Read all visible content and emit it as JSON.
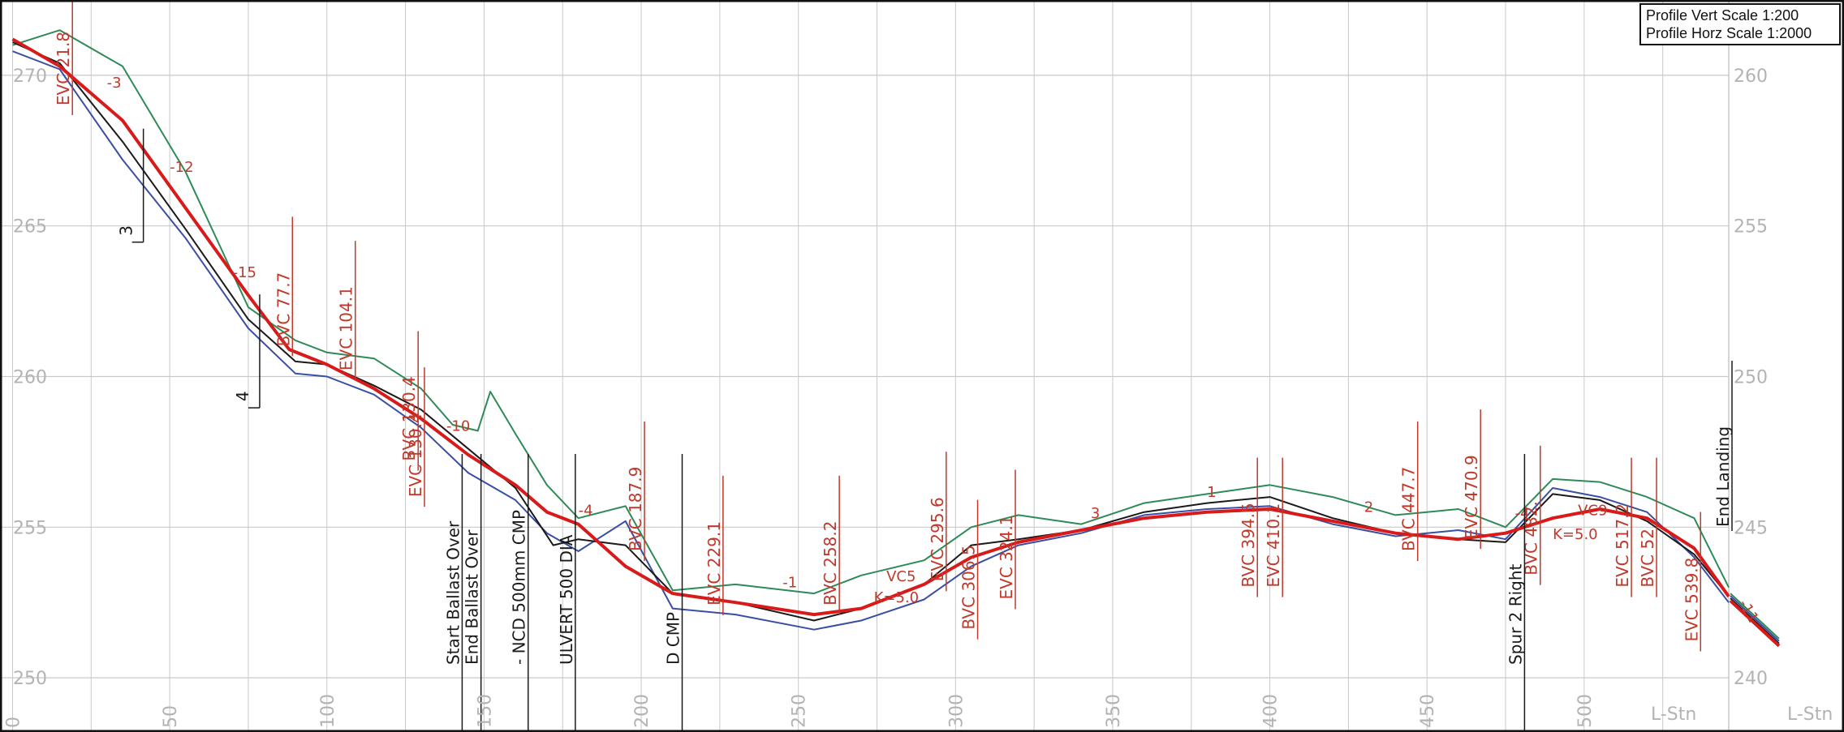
{
  "scale_box": {
    "vert": "Profile Vert Scale 1:200",
    "horz": "Profile Horz Scale 1:2000"
  },
  "colors": {
    "grid": "#c9c9c9",
    "axis_text": "#b3b3b3",
    "design": "#d81a1a",
    "annotation": "#c0392b",
    "green": "#2e8b57",
    "blue": "#3a4fa3",
    "black": "#1a1a1a",
    "border": "#111111"
  },
  "chart_data": {
    "type": "line",
    "title": "",
    "x_axis": {
      "label": "L-Stn",
      "ticks": [
        "0",
        "50",
        "100",
        "150",
        "200",
        "250",
        "300",
        "350",
        "400",
        "450",
        "500"
      ],
      "xlim": [
        -4,
        546
      ]
    },
    "y_axis_left": {
      "ticks": [
        "250",
        "255",
        "260",
        "265",
        "270"
      ],
      "ylim": [
        248.2,
        272.5
      ]
    },
    "y_axis_right": {
      "ticks": [
        "240",
        "245",
        "250",
        "255",
        "260"
      ],
      "ylim": [
        238.2,
        262.5
      ],
      "label": "L-Stn"
    },
    "series": [
      {
        "role": "design-grade",
        "color": "#d81a1a",
        "x": [
          0,
          15,
          35,
          55,
          75,
          88,
          100,
          115,
          130,
          145,
          160,
          170,
          180,
          195,
          210,
          230,
          255,
          270,
          290,
          305,
          320,
          340,
          360,
          380,
          400,
          420,
          440,
          460,
          475,
          490,
          505,
          520,
          535,
          546
        ],
        "y": [
          271.2,
          270.3,
          268.5,
          265.6,
          262.7,
          260.9,
          260.4,
          259.6,
          258.6,
          257.4,
          256.4,
          255.5,
          255.1,
          253.7,
          252.8,
          252.5,
          252.1,
          252.3,
          253.1,
          254.0,
          254.5,
          254.9,
          255.3,
          255.5,
          255.6,
          255.2,
          254.8,
          254.6,
          254.8,
          255.3,
          255.6,
          255.3,
          254.3,
          252.7
        ]
      },
      {
        "role": "ground-green",
        "color": "#2e8b57",
        "x": [
          0,
          15,
          35,
          55,
          75,
          90,
          100,
          115,
          130,
          140,
          148,
          152,
          160,
          170,
          180,
          195,
          210,
          230,
          255,
          270,
          290,
          305,
          320,
          340,
          360,
          380,
          400,
          420,
          440,
          460,
          475,
          490,
          505,
          520,
          535,
          546
        ],
        "y": [
          271.0,
          271.5,
          270.3,
          266.8,
          262.3,
          261.2,
          260.8,
          260.6,
          259.6,
          258.4,
          258.2,
          259.5,
          258.1,
          256.4,
          255.3,
          255.7,
          252.9,
          253.1,
          252.8,
          253.4,
          253.9,
          255.0,
          255.4,
          255.1,
          255.8,
          256.1,
          256.4,
          256.0,
          255.4,
          255.6,
          255.0,
          256.6,
          256.5,
          256.0,
          255.3,
          253.0
        ]
      },
      {
        "role": "ground-blue",
        "color": "#3a4fa3",
        "x": [
          0,
          15,
          35,
          55,
          75,
          90,
          100,
          115,
          130,
          145,
          160,
          170,
          180,
          195,
          210,
          230,
          255,
          270,
          290,
          305,
          320,
          340,
          360,
          380,
          400,
          420,
          440,
          460,
          475,
          490,
          505,
          520,
          535,
          546
        ],
        "y": [
          270.8,
          270.2,
          267.2,
          264.6,
          261.6,
          260.1,
          260.0,
          259.4,
          258.3,
          256.8,
          255.9,
          254.8,
          254.2,
          255.2,
          252.3,
          252.1,
          251.6,
          251.9,
          252.6,
          253.7,
          254.4,
          254.8,
          255.4,
          255.6,
          255.7,
          255.1,
          254.7,
          254.9,
          254.6,
          256.3,
          256.0,
          255.5,
          254.0,
          252.5
        ]
      },
      {
        "role": "ground-black",
        "color": "#1a1a1a",
        "x": [
          0,
          15,
          35,
          55,
          75,
          90,
          100,
          115,
          130,
          145,
          160,
          172,
          180,
          195,
          210,
          230,
          255,
          270,
          290,
          305,
          320,
          340,
          360,
          380,
          400,
          420,
          440,
          460,
          475,
          490,
          505,
          520,
          535,
          546
        ],
        "y": [
          271.1,
          270.4,
          267.8,
          264.9,
          261.9,
          260.5,
          260.4,
          259.7,
          258.9,
          257.6,
          256.3,
          254.4,
          254.6,
          254.4,
          252.8,
          252.5,
          251.9,
          252.3,
          253.1,
          254.4,
          254.6,
          254.9,
          255.5,
          255.8,
          256.0,
          255.3,
          254.8,
          254.6,
          254.5,
          256.1,
          255.9,
          255.2,
          254.1,
          252.7
        ]
      }
    ],
    "right_segment": {
      "x": [
        540,
        546
      ],
      "y": [
        252.8,
        251.3
      ],
      "label": "-11"
    },
    "annotations_red": [
      {
        "text": "BVC 77.7",
        "x": 88,
        "y": 261.0
      },
      {
        "text": "EVC 104.1",
        "x": 108,
        "y": 260.2
      },
      {
        "text": "EVC 21.8",
        "x": 18,
        "y": 269.0
      },
      {
        "text": "BVC 130.4",
        "x": 128,
        "y": 257.2
      },
      {
        "text": "EVC 130.4",
        "x": 130,
        "y": 256.0
      },
      {
        "text": "BVC 187.9",
        "x": 200,
        "y": 254.2
      },
      {
        "text": "EVC 229.1",
        "x": 225,
        "y": 252.4
      },
      {
        "text": "BVC 258.2",
        "x": 262,
        "y": 252.4
      },
      {
        "text": "EVC 295.6",
        "x": 296,
        "y": 253.2
      },
      {
        "text": "BVC 306.5",
        "x": 306,
        "y": 251.6
      },
      {
        "text": "EVC 324.1",
        "x": 318,
        "y": 252.6
      },
      {
        "text": "BVC 394.5",
        "x": 395,
        "y": 253.0
      },
      {
        "text": "EVC 410.1",
        "x": 403,
        "y": 253.0
      },
      {
        "text": "BVC 447.7",
        "x": 446,
        "y": 254.2
      },
      {
        "text": "EVC 470.9",
        "x": 466,
        "y": 254.6
      },
      {
        "text": "BVC 482.",
        "x": 485,
        "y": 253.4
      },
      {
        "text": "EVC 517.2",
        "x": 514,
        "y": 253.0
      },
      {
        "text": "BVC 52",
        "x": 522,
        "y": 253.0
      },
      {
        "text": "EVC 539.8",
        "x": 536,
        "y": 251.2
      }
    ],
    "slope_labels": [
      {
        "text": "-3",
        "x": 30,
        "y": 269.6
      },
      {
        "text": "-12",
        "x": 50,
        "y": 266.8
      },
      {
        "text": "-15",
        "x": 70,
        "y": 263.3
      },
      {
        "text": "-10",
        "x": 138,
        "y": 258.2
      },
      {
        "text": "-4",
        "x": 180,
        "y": 255.4
      },
      {
        "text": "-1",
        "x": 245,
        "y": 253.0
      },
      {
        "text": "VC5",
        "x": 278,
        "y": 253.2
      },
      {
        "text": "K=5.0",
        "x": 274,
        "y": 252.5
      },
      {
        "text": "3",
        "x": 343,
        "y": 255.3
      },
      {
        "text": "1",
        "x": 380,
        "y": 256.0
      },
      {
        "text": "2",
        "x": 430,
        "y": 255.5
      },
      {
        "text": "-4",
        "x": 478,
        "y": 255.3
      },
      {
        "text": "VC9",
        "x": 498,
        "y": 255.4
      },
      {
        "text": "K=5.0",
        "x": 490,
        "y": 254.6
      }
    ],
    "structures": [
      {
        "text": "Start Ballast Over",
        "x": 142
      },
      {
        "text": "End Ballast Over",
        "x": 148
      },
      {
        "text": "- NCD 500mm CMP",
        "x": 163
      },
      {
        "text": "ULVERT 500 DIA",
        "x": 178
      },
      {
        "text": "D CMP",
        "x": 212
      },
      {
        "text": "Spur 2 Right",
        "x": 480
      },
      {
        "text": "End Landing",
        "x": 546
      }
    ],
    "grade_breaks": [
      {
        "text": "3",
        "x": 38,
        "y": 265.0
      },
      {
        "text": "4",
        "x": 75,
        "y": 259.5
      }
    ]
  }
}
